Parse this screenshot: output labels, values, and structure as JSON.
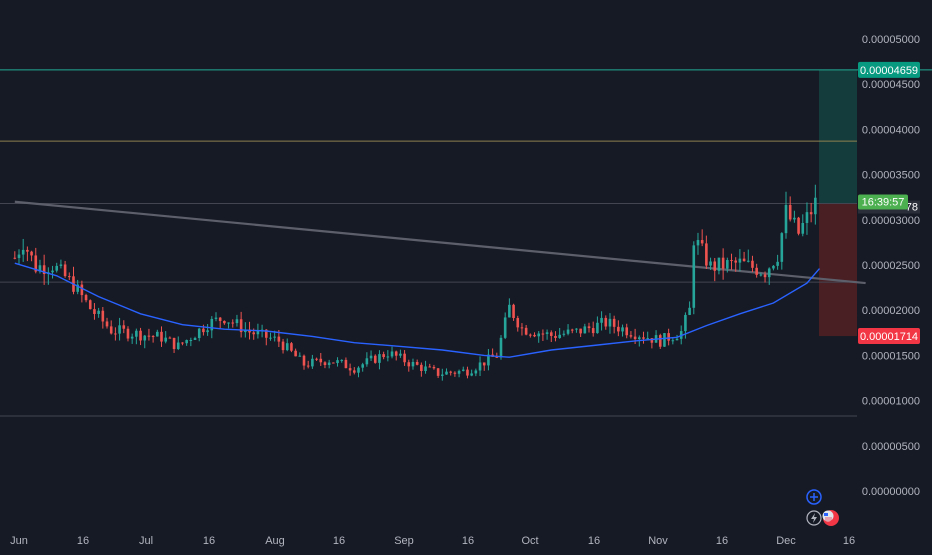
{
  "colors": {
    "background": "#161a25",
    "up": "#26a69a",
    "down": "#ef5350",
    "ma": "#2962ff",
    "trend": "#5d606b",
    "target_line": "#22ab94",
    "level_olive": "#8e7f4f",
    "level_gray": "#434651",
    "profit_zone": "#143c3c",
    "loss_zone": "#4a1f24",
    "price_green": "#4caf50",
    "stop_red": "#f23645",
    "target_teal": "#089981"
  },
  "chart_data": {
    "type": "candlestick",
    "y_axis": {
      "ticks": [
        "0.00005000",
        "0.00004500",
        "0.00004000",
        "0.00003500",
        "0.00003000",
        "0.00002500",
        "0.00002000",
        "0.00001500",
        "0.00001000",
        "0.00000500",
        "0.00000000"
      ],
      "range": [
        0,
        5.3e-05
      ]
    },
    "x_axis": {
      "ticks": [
        "Jun",
        "16",
        "Jul",
        "16",
        "Aug",
        "16",
        "Sep",
        "16",
        "Oct",
        "16",
        "Nov",
        "16",
        "Dec",
        "16"
      ],
      "start": "2023-05-31",
      "end": "2023-12-22"
    },
    "trendline": {
      "from": [
        "2023-05-31",
        3.2e-05
      ],
      "to": [
        "2023-12-20",
        2.3e-05
      ]
    },
    "horizontal_levels": [
      {
        "value": 4.659e-05,
        "kind": "target"
      },
      {
        "value": 3.87e-05,
        "kind": "olive"
      },
      {
        "value": 3.18e-05,
        "kind": "gray"
      },
      {
        "value": 2.31e-05,
        "kind": "gray"
      },
      {
        "value": 8.3e-06,
        "kind": "gray"
      }
    ],
    "position": {
      "from": "2023-12-05",
      "to": "2023-12-19",
      "entry": 3.18e-05,
      "target": 4.659e-05,
      "stop": 1.714e-05
    },
    "price_labels": {
      "target": "0.00004659",
      "stop": "0.00001714",
      "countdown": "16:39:57",
      "last_price_suffix": "78",
      "last_price": 3.18e-05
    },
    "ma_series": [
      [
        "2023-05-31",
        2.52e-05
      ],
      [
        "2023-06-10",
        2.38e-05
      ],
      [
        "2023-06-20",
        2.15e-05
      ],
      [
        "2023-06-30",
        1.96e-05
      ],
      [
        "2023-07-10",
        1.84e-05
      ],
      [
        "2023-07-20",
        1.79e-05
      ],
      [
        "2023-07-30",
        1.77e-05
      ],
      [
        "2023-08-10",
        1.71e-05
      ],
      [
        "2023-08-20",
        1.64e-05
      ],
      [
        "2023-08-31",
        1.6e-05
      ],
      [
        "2023-09-10",
        1.56e-05
      ],
      [
        "2023-09-20",
        1.5e-05
      ],
      [
        "2023-09-26",
        1.48e-05
      ],
      [
        "2023-10-06",
        1.56e-05
      ],
      [
        "2023-10-16",
        1.61e-05
      ],
      [
        "2023-10-26",
        1.66e-05
      ],
      [
        "2023-11-05",
        1.7e-05
      ],
      [
        "2023-11-12",
        1.83e-05
      ],
      [
        "2023-11-20",
        1.96e-05
      ],
      [
        "2023-11-28",
        2.08e-05
      ],
      [
        "2023-12-06",
        2.3e-05
      ],
      [
        "2023-12-09",
        2.46e-05
      ]
    ],
    "price_anchors": [
      [
        "2023-05-31",
        2.58e-05
      ],
      [
        "2023-06-02",
        2.76e-05
      ],
      [
        "2023-06-05",
        2.48e-05
      ],
      [
        "2023-06-09",
        2.5e-05
      ],
      [
        "2023-06-14",
        2.28e-05
      ],
      [
        "2023-06-18",
        2.02e-05
      ],
      [
        "2023-06-23",
        1.78e-05
      ],
      [
        "2023-06-29",
        1.74e-05
      ],
      [
        "2023-07-05",
        1.7e-05
      ],
      [
        "2023-07-09",
        1.6e-05
      ],
      [
        "2023-07-16",
        1.85e-05
      ],
      [
        "2023-07-20",
        1.92e-05
      ],
      [
        "2023-07-26",
        1.76e-05
      ],
      [
        "2023-08-02",
        1.66e-05
      ],
      [
        "2023-08-08",
        1.4e-05
      ],
      [
        "2023-08-14",
        1.45e-05
      ],
      [
        "2023-08-20",
        1.36e-05
      ],
      [
        "2023-08-28",
        1.53e-05
      ],
      [
        "2023-09-03",
        1.4e-05
      ],
      [
        "2023-09-09",
        1.3e-05
      ],
      [
        "2023-09-16",
        1.33e-05
      ],
      [
        "2023-09-23",
        1.5e-05
      ],
      [
        "2023-09-26",
        2.03e-05
      ],
      [
        "2023-09-29",
        1.8e-05
      ],
      [
        "2023-10-06",
        1.72e-05
      ],
      [
        "2023-10-12",
        1.76e-05
      ],
      [
        "2023-10-19",
        1.86e-05
      ],
      [
        "2023-10-26",
        1.75e-05
      ],
      [
        "2023-11-01",
        1.66e-05
      ],
      [
        "2023-11-06",
        1.76e-05
      ],
      [
        "2023-11-08",
        2e-05
      ],
      [
        "2023-11-09",
        2.8e-05
      ],
      [
        "2023-11-13",
        2.48e-05
      ],
      [
        "2023-11-20",
        2.52e-05
      ],
      [
        "2023-11-26",
        2.43e-05
      ],
      [
        "2023-11-29",
        2.62e-05
      ],
      [
        "2023-12-01",
        3.08e-05
      ],
      [
        "2023-12-04",
        2.85e-05
      ],
      [
        "2023-12-08",
        3.18e-05
      ]
    ]
  },
  "toolbar": {
    "add_icon": "plus-circle-icon",
    "lightning_icon": "lightning-icon",
    "flag_icon": "us-flag-icon"
  }
}
